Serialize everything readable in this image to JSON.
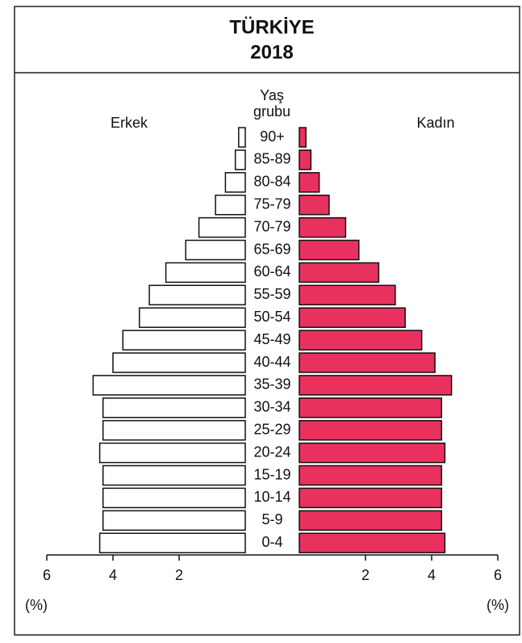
{
  "chart_data": {
    "type": "pyramid",
    "title": "TÜRKİYE",
    "subtitle": "2018",
    "category_label": [
      "Yaş",
      "grubu"
    ],
    "categories": [
      "90+",
      "85-89",
      "80-84",
      "75-79",
      "70-79",
      "65-69",
      "60-64",
      "55-59",
      "50-54",
      "45-49",
      "40-44",
      "35-39",
      "30-34",
      "25-29",
      "20-24",
      "15-19",
      "10-14",
      "5-9",
      "0-4"
    ],
    "series": [
      {
        "name": "Erkek",
        "color": "#ffffff",
        "values": [
          0.2,
          0.3,
          0.6,
          0.9,
          1.4,
          1.8,
          2.4,
          2.9,
          3.2,
          3.7,
          4.0,
          4.6,
          4.3,
          4.3,
          4.4,
          4.3,
          4.3,
          4.3,
          4.4
        ]
      },
      {
        "name": "Kadın",
        "color": "#e8315f",
        "values": [
          0.2,
          0.35,
          0.6,
          0.9,
          1.4,
          1.8,
          2.4,
          2.9,
          3.2,
          3.7,
          4.1,
          4.6,
          4.3,
          4.3,
          4.4,
          4.3,
          4.3,
          4.3,
          4.4
        ]
      }
    ],
    "xlim": [
      0,
      6
    ],
    "xticks": [
      2,
      4,
      6
    ],
    "x_axis_label": "(%)"
  }
}
